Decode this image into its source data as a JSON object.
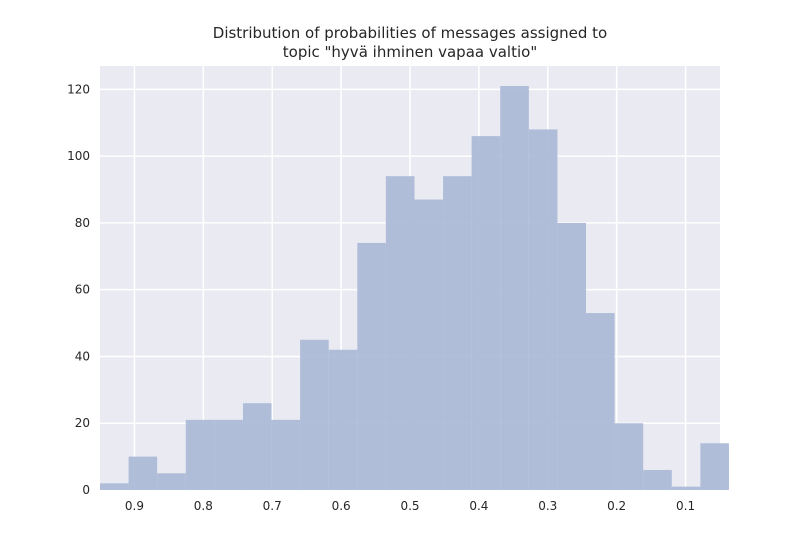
{
  "chart_data": {
    "type": "bar",
    "title_lines": [
      "Distribution of probabilities of messages assigned to",
      "topic \"hyvä ihminen vapaa valtio\""
    ],
    "xlabel": "",
    "ylabel": "",
    "x_axis_reversed": true,
    "xlim": [
      0.95,
      0.05
    ],
    "ylim": [
      0,
      127
    ],
    "grid": true,
    "x_ticks": [
      "0.9",
      "0.8",
      "0.7",
      "0.6",
      "0.5",
      "0.4",
      "0.3",
      "0.2",
      "0.1"
    ],
    "x_tick_values": [
      0.9,
      0.8,
      0.7,
      0.6,
      0.5,
      0.4,
      0.3,
      0.2,
      0.1
    ],
    "y_ticks": [
      "0",
      "20",
      "40",
      "60",
      "80",
      "100",
      "120"
    ],
    "y_tick_values": [
      0,
      20,
      40,
      60,
      80,
      100,
      120
    ],
    "bin_edges": [
      0.95,
      0.9085,
      0.867,
      0.8255,
      0.784,
      0.7425,
      0.701,
      0.6595,
      0.618,
      0.5765,
      0.535,
      0.4935,
      0.452,
      0.4105,
      0.369,
      0.3275,
      0.286,
      0.2445,
      0.203,
      0.1615,
      0.12,
      0.0785
    ],
    "values": [
      2,
      10,
      5,
      21,
      21,
      26,
      21,
      45,
      42,
      74,
      94,
      87,
      94,
      106,
      121,
      108,
      80,
      53,
      20,
      6,
      1,
      14
    ],
    "bar_color": "#a9b8d7",
    "background_color": "#eaeaf2",
    "grid_color": "#ffffff"
  }
}
